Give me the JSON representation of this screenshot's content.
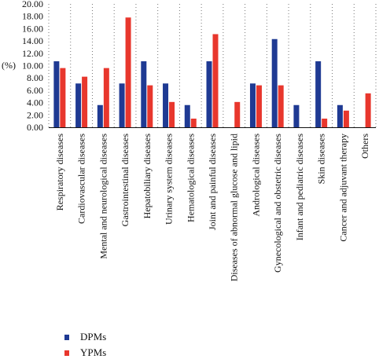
{
  "chart_data": {
    "type": "bar",
    "ylabel": "(%)",
    "ylim": [
      0,
      20
    ],
    "yticks": [
      "0.00",
      "2.00",
      "4.00",
      "6.00",
      "8.00",
      "10.00",
      "12.00",
      "14.00",
      "16.00",
      "18.00",
      "20.00"
    ],
    "grid": "vertical dotted",
    "legend_position": "bottom-left",
    "categories": [
      "Respiratory diseases",
      "Cardiovascular diseases",
      "Mental and neurological diseases",
      "Gastrointestinal diseases",
      "Hepatobiliary diseases",
      "Urinary system diseases",
      "Hematological diseases",
      "Joint and painful diseases",
      "Diseases of abnormal glucose and lipid",
      "Andrological diseases",
      "Gynecological and obstetric diseases",
      "Infant and pediatric diseases",
      "Skin diseases",
      "Cancer and adjuvant therapy",
      "Others"
    ],
    "series": [
      {
        "name": "DPMs",
        "color": "#1f3a93",
        "values": [
          10.7,
          7.1,
          3.6,
          7.1,
          10.7,
          7.1,
          3.6,
          10.7,
          0,
          7.1,
          14.3,
          3.6,
          10.7,
          3.6,
          0
        ]
      },
      {
        "name": "YPMs",
        "color": "#e8372d",
        "values": [
          9.6,
          8.2,
          9.6,
          17.8,
          6.8,
          4.1,
          1.4,
          15.1,
          4.1,
          6.8,
          6.8,
          0,
          1.4,
          2.7,
          5.5
        ]
      }
    ]
  }
}
